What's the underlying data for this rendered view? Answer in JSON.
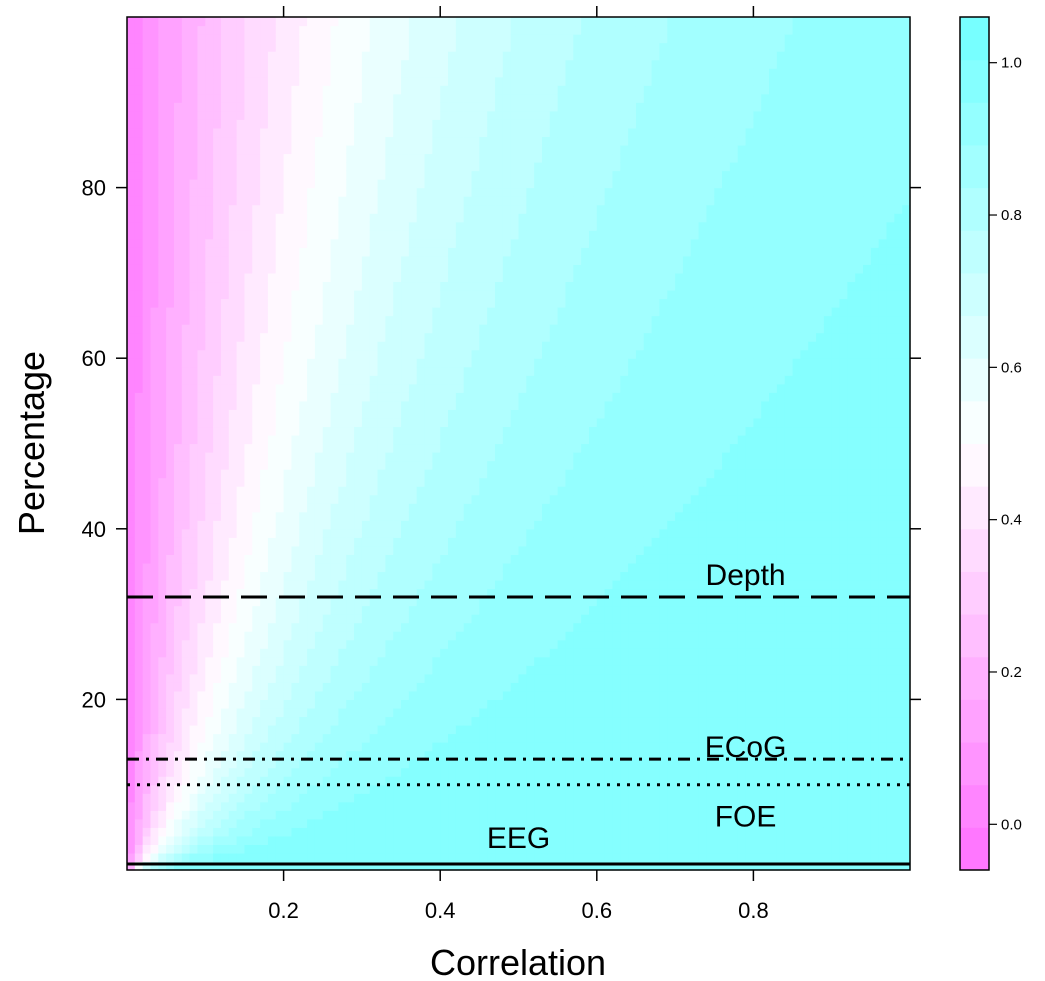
{
  "chart_data": {
    "type": "heatmap",
    "xlabel": "Correlation",
    "ylabel": "Percentage",
    "xlim": [
      0,
      1
    ],
    "ylim": [
      0,
      100
    ],
    "x_ticks": [
      {
        "value": 0.2,
        "label": "0.2"
      },
      {
        "value": 0.4,
        "label": "0.4"
      },
      {
        "value": 0.6,
        "label": "0.6"
      },
      {
        "value": 0.8,
        "label": "0.8"
      }
    ],
    "y_ticks": [
      {
        "value": 20,
        "label": "20"
      },
      {
        "value": 40,
        "label": "40"
      },
      {
        "value": 60,
        "label": "60"
      },
      {
        "value": 80,
        "label": "80"
      }
    ],
    "grid": false,
    "colorbar": {
      "range": [
        -0.06,
        1.06
      ],
      "ticks": [
        {
          "value": 0.0,
          "label": "0.0"
        },
        {
          "value": 0.2,
          "label": "0.2"
        },
        {
          "value": 0.4,
          "label": "0.4"
        },
        {
          "value": 0.6,
          "label": "0.6"
        },
        {
          "value": 0.8,
          "label": "0.8"
        },
        {
          "value": 1.0,
          "label": "1.0"
        }
      ],
      "low_color": "#ff77ff",
      "mid_color": "#ffffff",
      "high_color": "#77ffff",
      "position": "right"
    },
    "reference_lines": [
      {
        "name": "Depth",
        "y": 32,
        "style": "dashed",
        "label_x": 0.79
      },
      {
        "name": "ECoG",
        "y": 13,
        "style": "dotdash",
        "label_x": 0.79
      },
      {
        "name": "FOE",
        "y": 10,
        "style": "dotted",
        "label_x": 0.79
      },
      {
        "name": "EEG",
        "y": 0.7,
        "style": "solid",
        "label_x": 0.5
      }
    ]
  }
}
